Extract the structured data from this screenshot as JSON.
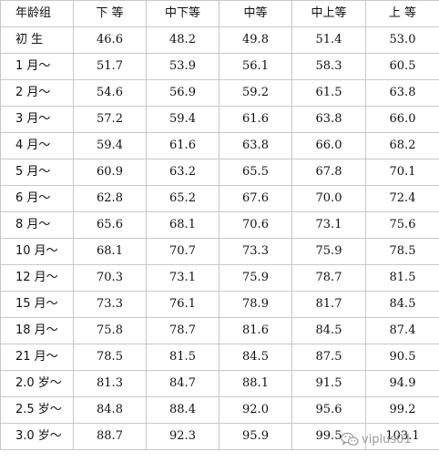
{
  "table": {
    "headers": [
      "年龄组",
      "下 等",
      "中下等",
      "中等",
      "中上等",
      "上 等"
    ],
    "rows": [
      {
        "age": "初 生",
        "values": [
          "46.6",
          "48.2",
          "49.8",
          "51.4",
          "53.0"
        ]
      },
      {
        "age": "1 月～",
        "values": [
          "51.7",
          "53.9",
          "56.1",
          "58.3",
          "60.5"
        ]
      },
      {
        "age": "2 月～",
        "values": [
          "54.6",
          "56.9",
          "59.2",
          "61.5",
          "63.8"
        ]
      },
      {
        "age": "3 月～",
        "values": [
          "57.2",
          "59.4",
          "61.6",
          "63.8",
          "66.0"
        ]
      },
      {
        "age": "4 月～",
        "values": [
          "59.4",
          "61.6",
          "63.8",
          "66.0",
          "68.2"
        ]
      },
      {
        "age": "5 月～",
        "values": [
          "60.9",
          "63.2",
          "65.5",
          "67.8",
          "70.1"
        ]
      },
      {
        "age": "6 月～",
        "values": [
          "62.8",
          "65.2",
          "67.6",
          "70.0",
          "72.4"
        ]
      },
      {
        "age": "8 月～",
        "values": [
          "65.6",
          "68.1",
          "70.6",
          "73.1",
          "75.6"
        ]
      },
      {
        "age": "10 月～",
        "values": [
          "68.1",
          "70.7",
          "73.3",
          "75.9",
          "78.5"
        ]
      },
      {
        "age": "12 月～",
        "values": [
          "70.3",
          "73.1",
          "75.9",
          "78.7",
          "81.5"
        ]
      },
      {
        "age": "15 月～",
        "values": [
          "73.3",
          "76.1",
          "78.9",
          "81.7",
          "84.5"
        ]
      },
      {
        "age": "18 月～",
        "values": [
          "75.8",
          "78.7",
          "81.6",
          "84.5",
          "87.4"
        ]
      },
      {
        "age": "21 月～",
        "values": [
          "78.5",
          "81.5",
          "84.5",
          "87.5",
          "90.5"
        ]
      },
      {
        "age": "2.0 岁～",
        "values": [
          "81.3",
          "84.7",
          "88.1",
          "91.5",
          "94.9"
        ]
      },
      {
        "age": "2.5 岁～",
        "values": [
          "84.8",
          "88.4",
          "92.0",
          "95.6",
          "99.2"
        ]
      },
      {
        "age": "3.0 岁～",
        "values": [
          "88.7",
          "92.3",
          "95.9",
          "99.5",
          "103.1"
        ]
      }
    ]
  },
  "watermark": {
    "icon": "wechat-icon",
    "text": "viplus01",
    "color": "#9a9a9a"
  }
}
